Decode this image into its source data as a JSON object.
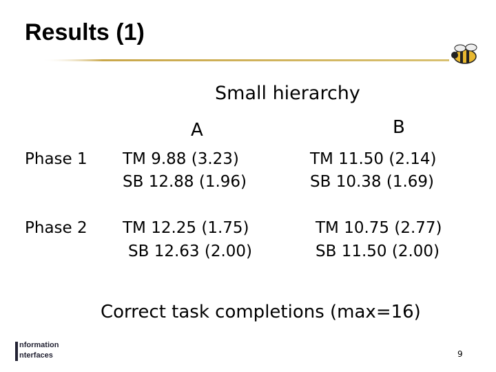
{
  "header": {
    "title": "Results (1)"
  },
  "subtitle": "Small hierarchy",
  "table": {
    "columns": [
      "A",
      "B"
    ],
    "rows": [
      {
        "label": "Phase 1",
        "cells": [
          [
            "TM 9.88 (3.23)",
            "SB 12.88 (1.96)"
          ],
          [
            "TM 11.50 (2.14)",
            "SB 10.38 (1.69)"
          ]
        ]
      },
      {
        "label": "Phase 2",
        "cells": [
          [
            "TM 12.25 (1.75)",
            "SB 12.63 (2.00)"
          ],
          [
            "TM 10.75 (2.77)",
            "SB 11.50 (2.00)"
          ]
        ]
      }
    ]
  },
  "caption": "Correct task completions (max=16)",
  "footer": {
    "logo": [
      "nformation",
      "nterfaces"
    ],
    "page": "9"
  }
}
